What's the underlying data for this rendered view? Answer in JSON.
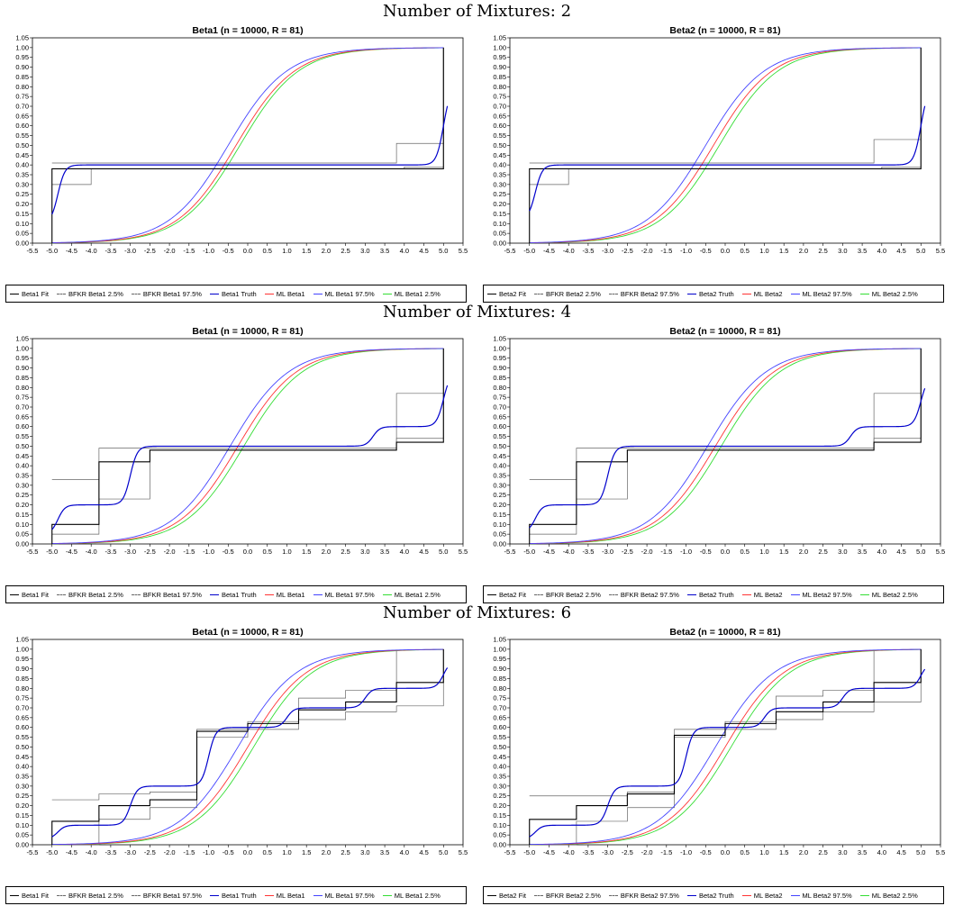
{
  "sections": [
    {
      "title": "Number of Mixtures: 2"
    },
    {
      "title": "Number of Mixtures: 4"
    },
    {
      "title": "Number of Mixtures: 6"
    }
  ],
  "legend_labels": {
    "beta1": [
      "Beta1 Fit",
      "BFKR Beta1 2.5%",
      "BFKR Beta1 97.5%",
      "Beta1 Truth",
      "ML Beta1",
      "ML Beta1 97.5%",
      "ML Beta1 2.5%"
    ],
    "beta2": [
      "Beta2 Fit",
      "BFKR Beta2 2.5%",
      "BFKR Beta2 97.5%",
      "Beta2 Truth",
      "ML Beta2",
      "ML Beta2 97.5%",
      "ML Beta2 2.5%"
    ]
  },
  "colors": {
    "fit": "#000000",
    "bfkr": "#666666",
    "truth": "#0000cc",
    "ml": "#ff3333",
    "ml97": "#4444ff",
    "ml25": "#33dd33"
  },
  "axes": {
    "xlim": [
      -5.5,
      5.5
    ],
    "ylim": [
      0,
      1.05
    ],
    "x_ticks": [
      "-5.5",
      "-5.0",
      "-4.5",
      "-4.0",
      "-3.5",
      "-3.0",
      "-2.5",
      "-2.0",
      "-1.5",
      "-1.0",
      "-0.5",
      "0.0",
      "0.5",
      "1.0",
      "1.5",
      "2.0",
      "2.5",
      "3.0",
      "3.5",
      "4.0",
      "4.5",
      "5.0",
      "5.5"
    ],
    "y_ticks": [
      "0.00",
      "0.05",
      "0.10",
      "0.15",
      "0.20",
      "0.25",
      "0.30",
      "0.35",
      "0.40",
      "0.45",
      "0.50",
      "0.55",
      "0.60",
      "0.65",
      "0.70",
      "0.75",
      "0.80",
      "0.85",
      "0.90",
      "0.95",
      "1.00",
      "1.05"
    ]
  },
  "chart_data": [
    {
      "type": "line",
      "title": "Beta1 (n = 10000, R = 81)",
      "mixtures": 2,
      "ml_centers": {
        "ml": -0.3,
        "ml97": -0.5,
        "ml25": -0.2
      },
      "ml_scale": 0.75,
      "truth": {
        "start": 0.1,
        "steps": [
          {
            "x": -4.85,
            "to": 0.4
          },
          {
            "x": 5.0,
            "to": 0.8
          }
        ]
      },
      "fit": {
        "x": [
          -5.0,
          -5.0,
          5.0,
          5.0
        ],
        "y": [
          0.0,
          0.38,
          0.42,
          1.0
        ]
      },
      "bfkr_lo": {
        "x": [
          -5.0,
          -4.0,
          4.0,
          5.0
        ],
        "y": [
          0.3,
          0.38,
          0.39,
          1.0
        ]
      },
      "bfkr_hi": {
        "x": [
          -5.0,
          3.8,
          5.0
        ],
        "y": [
          0.41,
          0.51,
          1.0
        ]
      }
    },
    {
      "type": "line",
      "title": "Beta2 (n = 10000, R = 81)",
      "mixtures": 2,
      "ml_centers": {
        "ml": -0.3,
        "ml97": -0.5,
        "ml25": -0.15
      },
      "ml_scale": 0.75,
      "truth": {
        "start": 0.12,
        "steps": [
          {
            "x": -4.85,
            "to": 0.4
          },
          {
            "x": 5.0,
            "to": 0.8
          }
        ]
      },
      "fit": {
        "x": [
          -5.0,
          -5.0,
          5.0,
          5.0
        ],
        "y": [
          0.0,
          0.38,
          0.42,
          1.0
        ]
      },
      "bfkr_lo": {
        "x": [
          -5.0,
          -4.0,
          4.0,
          5.0
        ],
        "y": [
          0.3,
          0.38,
          0.39,
          1.0
        ]
      },
      "bfkr_hi": {
        "x": [
          -5.0,
          3.8,
          5.0
        ],
        "y": [
          0.41,
          0.53,
          1.0
        ]
      }
    },
    {
      "type": "line",
      "title": "Beta1 (n = 10000, R = 81)",
      "mixtures": 4,
      "ml_centers": {
        "ml": -0.25,
        "ml97": -0.45,
        "ml25": -0.1
      },
      "ml_scale": 0.75,
      "truth": {
        "start": 0.05,
        "steps": [
          {
            "x": -4.85,
            "to": 0.2
          },
          {
            "x": -3.0,
            "to": 0.5
          },
          {
            "x": 3.2,
            "to": 0.6
          },
          {
            "x": 5.0,
            "to": 0.88
          }
        ]
      },
      "fit": {
        "x": [
          -5.0,
          -5.0,
          -3.8,
          -2.5,
          3.8,
          5.0,
          5.0
        ],
        "y": [
          0.0,
          0.1,
          0.42,
          0.48,
          0.52,
          0.62,
          1.0
        ]
      },
      "bfkr_lo": {
        "x": [
          -5.0,
          -3.8,
          -2.5,
          3.8,
          5.0
        ],
        "y": [
          0.05,
          0.23,
          0.48,
          0.54,
          1.0
        ]
      },
      "bfkr_hi": {
        "x": [
          -5.0,
          -3.8,
          3.8,
          5.0
        ],
        "y": [
          0.33,
          0.49,
          0.77,
          1.0
        ]
      }
    },
    {
      "type": "line",
      "title": "Beta2 (n = 10000, R = 81)",
      "mixtures": 4,
      "ml_centers": {
        "ml": -0.25,
        "ml97": -0.45,
        "ml25": -0.1
      },
      "ml_scale": 0.75,
      "truth": {
        "start": 0.06,
        "steps": [
          {
            "x": -4.85,
            "to": 0.2
          },
          {
            "x": -3.0,
            "to": 0.5
          },
          {
            "x": 3.2,
            "to": 0.6
          },
          {
            "x": 5.0,
            "to": 0.86
          }
        ]
      },
      "fit": {
        "x": [
          -5.0,
          -5.0,
          -3.8,
          -2.5,
          3.8,
          5.0,
          5.0
        ],
        "y": [
          0.0,
          0.1,
          0.42,
          0.48,
          0.52,
          0.62,
          1.0
        ]
      },
      "bfkr_lo": {
        "x": [
          -5.0,
          -3.8,
          -2.5,
          3.8,
          5.0
        ],
        "y": [
          0.05,
          0.23,
          0.48,
          0.54,
          1.0
        ]
      },
      "bfkr_hi": {
        "x": [
          -5.0,
          -3.8,
          3.8,
          5.0
        ],
        "y": [
          0.33,
          0.49,
          0.77,
          1.0
        ]
      }
    },
    {
      "type": "line",
      "title": "Beta1 (n = 10000, R = 81)",
      "mixtures": 6,
      "ml_centers": {
        "ml": 0.0,
        "ml97": -0.25,
        "ml25": 0.15
      },
      "ml_scale": 0.75,
      "truth": {
        "start": 0.03,
        "steps": [
          {
            "x": -4.85,
            "to": 0.1
          },
          {
            "x": -3.0,
            "to": 0.3
          },
          {
            "x": -1.0,
            "to": 0.6
          },
          {
            "x": 1.0,
            "to": 0.7
          },
          {
            "x": 3.0,
            "to": 0.8
          },
          {
            "x": 5.0,
            "to": 0.94
          }
        ]
      },
      "fit": {
        "x": [
          -5.0,
          -5.0,
          -3.8,
          -2.5,
          -1.3,
          0.0,
          1.3,
          2.5,
          3.8,
          5.0
        ],
        "y": [
          0.0,
          0.12,
          0.2,
          0.23,
          0.58,
          0.62,
          0.69,
          0.73,
          0.83,
          1.0
        ]
      },
      "bfkr_lo": {
        "x": [
          -5.0,
          -3.8,
          -2.5,
          -1.3,
          0.0,
          1.3,
          2.5,
          3.8,
          5.0
        ],
        "y": [
          0.0,
          0.13,
          0.19,
          0.55,
          0.59,
          0.64,
          0.68,
          0.71,
          1.0
        ]
      },
      "bfkr_hi": {
        "x": [
          -5.0,
          -3.8,
          -2.5,
          -1.3,
          0.0,
          1.3,
          2.5,
          3.8
        ],
        "y": [
          0.23,
          0.26,
          0.27,
          0.59,
          0.63,
          0.75,
          0.79,
          0.99
        ]
      }
    },
    {
      "type": "line",
      "title": "Beta2 (n = 10000, R = 81)",
      "mixtures": 6,
      "ml_centers": {
        "ml": 0.0,
        "ml97": -0.25,
        "ml25": 0.15
      },
      "ml_scale": 0.75,
      "truth": {
        "start": 0.03,
        "steps": [
          {
            "x": -4.85,
            "to": 0.1
          },
          {
            "x": -3.0,
            "to": 0.3
          },
          {
            "x": -1.0,
            "to": 0.6
          },
          {
            "x": 1.0,
            "to": 0.7
          },
          {
            "x": 3.0,
            "to": 0.8
          },
          {
            "x": 5.0,
            "to": 0.93
          }
        ]
      },
      "fit": {
        "x": [
          -5.0,
          -5.0,
          -3.8,
          -2.5,
          -1.3,
          0.0,
          1.3,
          2.5,
          3.8,
          5.0
        ],
        "y": [
          0.0,
          0.13,
          0.2,
          0.26,
          0.56,
          0.62,
          0.68,
          0.73,
          0.83,
          1.0
        ]
      },
      "bfkr_lo": {
        "x": [
          -5.0,
          -3.8,
          -2.5,
          -1.3,
          0.0,
          1.3,
          2.5,
          3.8,
          5.0
        ],
        "y": [
          0.0,
          0.12,
          0.19,
          0.55,
          0.59,
          0.64,
          0.68,
          0.73,
          1.0
        ]
      },
      "bfkr_hi": {
        "x": [
          -5.0,
          -3.8,
          -2.5,
          -1.3,
          0.0,
          1.3,
          2.5,
          3.8
        ],
        "y": [
          0.25,
          0.25,
          0.27,
          0.59,
          0.63,
          0.76,
          0.79,
          0.99
        ]
      }
    }
  ]
}
